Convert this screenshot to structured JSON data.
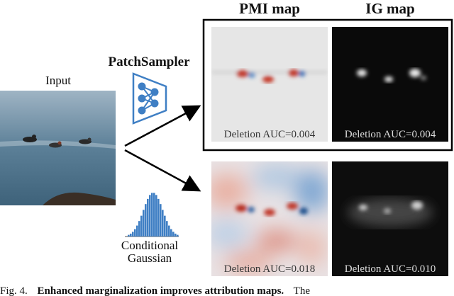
{
  "figure": {
    "column_headers": [
      "PMI map",
      "IG map"
    ],
    "input_label": "Input",
    "sampler_label": "PatchSampler",
    "gaussian_label": [
      "Conditional",
      "Gaussian"
    ],
    "rows": [
      {
        "pmi_auc": "Deletion AUC=0.004",
        "ig_auc": "Deletion AUC=0.004"
      },
      {
        "pmi_auc": "Deletion AUC=0.018",
        "ig_auc": "Deletion AUC=0.010"
      }
    ],
    "caption": {
      "label": "Fig. 4.",
      "bold": "Enhanced marginalization improves attribution maps.",
      "rest": "The"
    }
  }
}
